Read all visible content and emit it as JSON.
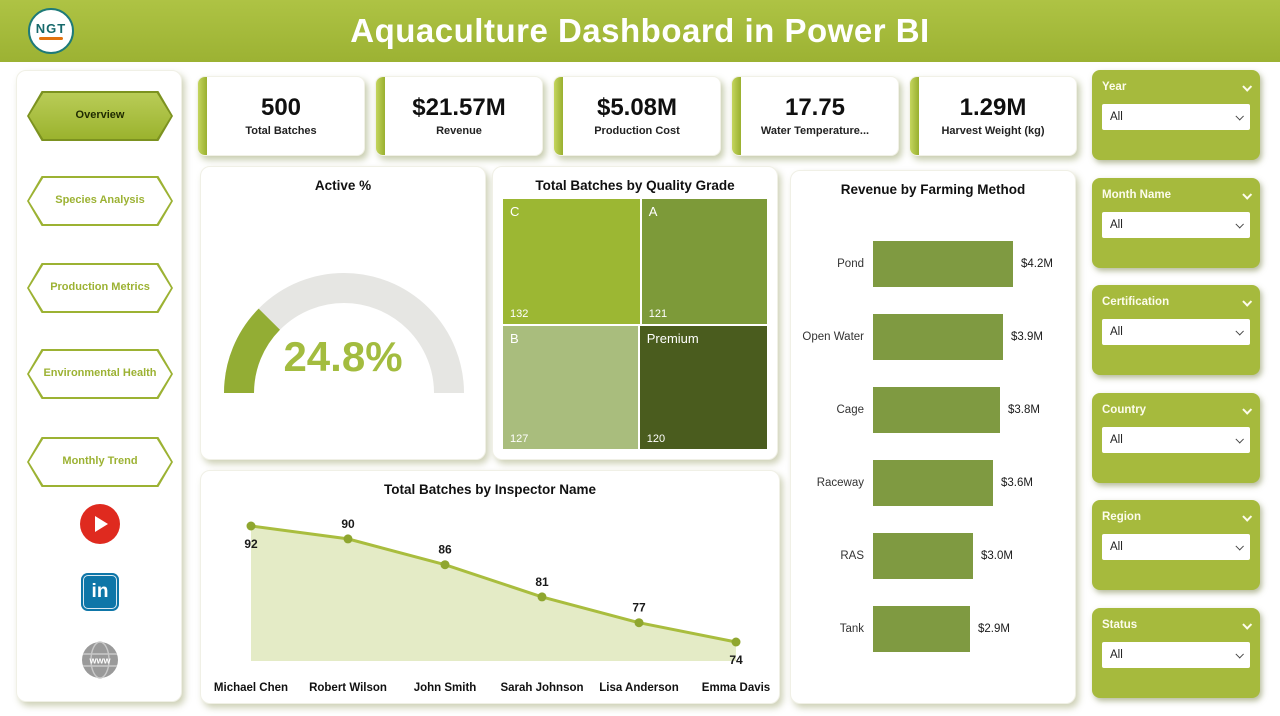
{
  "header": {
    "title": "Aquaculture Dashboard in Power BI",
    "logo_text": "NGT"
  },
  "theme": {
    "primary_green": "#a6ba3d",
    "header_green": "#9cb233",
    "dark_accent": "#7c9220",
    "gauge_value_color": "#a3bc3f"
  },
  "sidebar": {
    "items": [
      {
        "label": "Overview",
        "active": true
      },
      {
        "label": "Species Analysis",
        "active": false
      },
      {
        "label": "Production Metrics",
        "active": false
      },
      {
        "label": "Environmental Health",
        "active": false
      },
      {
        "label": "Monthly Trend",
        "active": false
      }
    ],
    "social": [
      "youtube",
      "linkedin",
      "website"
    ]
  },
  "kpis": [
    {
      "value": "500",
      "label": "Total Batches"
    },
    {
      "value": "$21.57M",
      "label": "Revenue"
    },
    {
      "value": "$5.08M",
      "label": "Production Cost"
    },
    {
      "value": "17.75",
      "label": "Water Temperature..."
    },
    {
      "value": "1.29M",
      "label": "Harvest Weight (kg)"
    }
  ],
  "chart_data": [
    {
      "id": "gauge",
      "type": "gauge",
      "title": "Active %",
      "value_label": "24.8%",
      "percent": 24.8,
      "fill_color": "#93ad34",
      "track_color": "#e6e6e3"
    },
    {
      "id": "treemap",
      "type": "treemap",
      "title": "Total Batches by Quality Grade",
      "items": [
        {
          "label": "C",
          "value": 132,
          "color": "#9cb733"
        },
        {
          "label": "A",
          "value": 121,
          "color": "#7d9a39"
        },
        {
          "label": "B",
          "value": 127,
          "color": "#a9bd7d"
        },
        {
          "label": "Premium",
          "value": 120,
          "color": "#4a5c1e"
        }
      ]
    },
    {
      "id": "bar",
      "type": "bar",
      "orientation": "horizontal",
      "title": "Revenue by Farming Method",
      "categories": [
        "Pond",
        "Open Water",
        "Cage",
        "Raceway",
        "RAS",
        "Tank"
      ],
      "values_millions": [
        4.2,
        3.9,
        3.8,
        3.6,
        3.0,
        2.9
      ],
      "value_labels": [
        "$4.2M",
        "$3.9M",
        "$3.8M",
        "$3.6M",
        "$3.0M",
        "$2.9M"
      ],
      "bar_color": "#7f9a41"
    },
    {
      "id": "line",
      "type": "area",
      "title": "Total Batches by Inspector Name",
      "categories": [
        "Michael Chen",
        "Robert Wilson",
        "John Smith",
        "Sarah Johnson",
        "Lisa Anderson",
        "Emma Davis"
      ],
      "values": [
        92,
        90,
        86,
        81,
        77,
        74
      ],
      "line_color": "#a9bd3e",
      "area_color": "#e4ebc6",
      "marker_color": "#8fa62f"
    }
  ],
  "slicers": [
    {
      "label": "Year",
      "value": "All"
    },
    {
      "label": "Month Name",
      "value": "All"
    },
    {
      "label": "Certification",
      "value": "All"
    },
    {
      "label": "Country",
      "value": "All"
    },
    {
      "label": "Region",
      "value": "All"
    },
    {
      "label": "Status",
      "value": "All"
    }
  ]
}
